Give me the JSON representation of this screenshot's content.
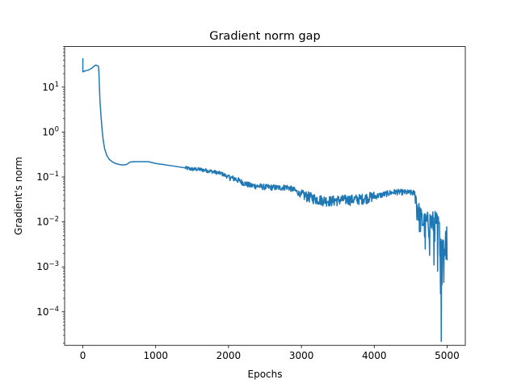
{
  "chart_data": {
    "type": "line",
    "title": "Gradient norm gap",
    "xlabel": "Epochs",
    "ylabel": "Gradient's norm",
    "xlim": [
      -250,
      5250
    ],
    "ylim": [
      1.8e-05,
      80
    ],
    "yscale": "log",
    "grid": false,
    "x_ticks": [
      0,
      1000,
      2000,
      3000,
      4000,
      5000
    ],
    "x_tick_labels": [
      "0",
      "1000",
      "2000",
      "3000",
      "4000",
      "5000"
    ],
    "y_ticks": [
      0.0001,
      0.001,
      0.01,
      0.1,
      1,
      10
    ],
    "y_tick_labels": [
      {
        "base": "10",
        "exp": "−4"
      },
      {
        "base": "10",
        "exp": "−3"
      },
      {
        "base": "10",
        "exp": "−2"
      },
      {
        "base": "10",
        "exp": "−1"
      },
      {
        "base": "10",
        "exp": "0"
      },
      {
        "base": "10",
        "exp": "1"
      }
    ],
    "line_color": "#1f77b4",
    "series": [
      {
        "x": [
          0,
          0,
          5,
          30,
          80,
          130,
          175,
          200,
          215,
          220,
          235,
          250,
          265,
          280,
          300,
          330,
          360,
          400,
          450,
          500,
          550,
          600,
          650,
          700,
          800,
          900,
          1000,
          1100,
          1200,
          1300,
          1400,
          1500,
          1600,
          1700,
          1800,
          1900,
          2000,
          2100,
          2200,
          2300,
          2400,
          2500,
          2600,
          2700,
          2800,
          2900,
          3000,
          3100,
          3200,
          3300,
          3400,
          3500,
          3600,
          3700,
          3800,
          3900,
          4000,
          4100,
          4200,
          4300,
          4400,
          4500,
          4560,
          4600,
          4650,
          4700,
          4750,
          4800,
          4850,
          4880,
          4900,
          4920,
          4940,
          4960,
          4980,
          5000
        ],
        "y": [
          44,
          22,
          22,
          23,
          24,
          27,
          31,
          30,
          29,
          22,
          5,
          2.2,
          1.1,
          0.65,
          0.42,
          0.3,
          0.25,
          0.22,
          0.2,
          0.19,
          0.185,
          0.19,
          0.215,
          0.22,
          0.22,
          0.22,
          0.2,
          0.19,
          0.18,
          0.17,
          0.16,
          0.15,
          0.148,
          0.14,
          0.13,
          0.12,
          0.1,
          0.09,
          0.075,
          0.065,
          0.063,
          0.06,
          0.059,
          0.058,
          0.06,
          0.052,
          0.04,
          0.036,
          0.032,
          0.03,
          0.029,
          0.03,
          0.031,
          0.031,
          0.032,
          0.034,
          0.037,
          0.04,
          0.044,
          0.047,
          0.046,
          0.045,
          0.044,
          0.02,
          0.012,
          0.01,
          0.011,
          0.011,
          0.011,
          0.009,
          0.006,
          0.004,
          0.003,
          0.0025,
          0.005,
          0.01
        ]
      }
    ],
    "noise_segments": [
      {
        "x": 1400,
        "x2": 2000,
        "lo": 0.9,
        "hi": 1.1
      },
      {
        "x": 2000,
        "x2": 3000,
        "lo": 0.85,
        "hi": 1.15
      },
      {
        "x": 3000,
        "x2": 4000,
        "lo": 0.75,
        "hi": 1.3
      },
      {
        "x": 4000,
        "x2": 4560,
        "lo": 0.85,
        "hi": 1.15
      },
      {
        "x": 4560,
        "x2": 5000,
        "lo": 0.3,
        "hi": 1.6
      }
    ],
    "spikes": [
      {
        "x": 4700,
        "y": 0.0025
      },
      {
        "x": 4760,
        "y": 0.0018
      },
      {
        "x": 4820,
        "y": 0.0011
      },
      {
        "x": 4870,
        "y": 0.0008
      },
      {
        "x": 4910,
        "y": 0.00025
      },
      {
        "x": 4920,
        "y": 2.2e-05
      },
      {
        "x": 4930,
        "y": 0.0004
      },
      {
        "x": 4955,
        "y": 0.00045
      },
      {
        "x": 4985,
        "y": 0.0015
      },
      {
        "x": 5000,
        "y": 0.0014
      }
    ]
  }
}
